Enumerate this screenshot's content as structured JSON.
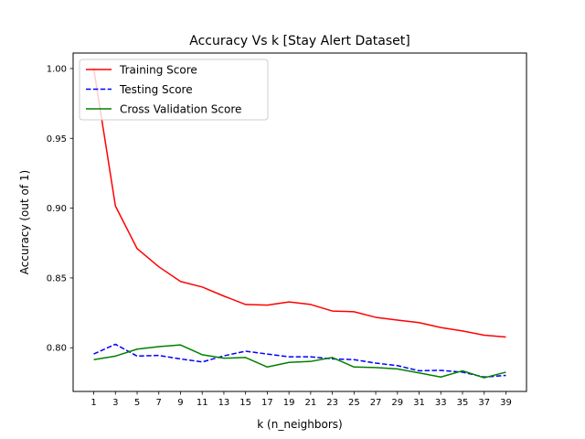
{
  "chart_data": {
    "type": "line",
    "title": "Accuracy Vs k [Stay Alert Dataset]",
    "xlabel": "k (n_neighbors)",
    "ylabel": "Accuracy (out of 1)",
    "x": [
      1,
      3,
      5,
      7,
      9,
      11,
      13,
      15,
      17,
      19,
      21,
      23,
      25,
      27,
      29,
      31,
      33,
      35,
      37,
      39
    ],
    "xticks": [
      "1",
      "3",
      "5",
      "7",
      "9",
      "11",
      "13",
      "15",
      "17",
      "19",
      "21",
      "23",
      "25",
      "27",
      "29",
      "31",
      "33",
      "35",
      "37",
      "39"
    ],
    "xlim": [
      -0.9,
      40.9
    ],
    "yticks": [
      "0.80",
      "0.85",
      "0.90",
      "0.95",
      "1.00"
    ],
    "ytick_values": [
      0.8,
      0.85,
      0.9,
      0.95,
      1.0
    ],
    "ylim": [
      0.7687,
      1.0111
    ],
    "grid": false,
    "legend_position": "top-left",
    "series": [
      {
        "name": "Training Score",
        "color": "#ff0000",
        "style": "solid",
        "values": [
          1.0,
          0.9015,
          0.871,
          0.858,
          0.8475,
          0.8435,
          0.837,
          0.831,
          0.8305,
          0.8328,
          0.831,
          0.8263,
          0.8258,
          0.8218,
          0.8198,
          0.818,
          0.8145,
          0.812,
          0.809,
          0.8077
        ]
      },
      {
        "name": "Testing Score",
        "color": "#0000ff",
        "style": "dashed",
        "values": [
          0.7955,
          0.8025,
          0.794,
          0.7945,
          0.792,
          0.7898,
          0.7942,
          0.7975,
          0.7955,
          0.7935,
          0.7935,
          0.792,
          0.7915,
          0.789,
          0.7872,
          0.7835,
          0.7838,
          0.7825,
          0.779,
          0.7802
        ]
      },
      {
        "name": "Cross Validation Score",
        "color": "#008000",
        "style": "solid",
        "values": [
          0.7915,
          0.794,
          0.799,
          0.8008,
          0.802,
          0.795,
          0.7925,
          0.793,
          0.7862,
          0.7895,
          0.7902,
          0.793,
          0.7862,
          0.7858,
          0.7848,
          0.782,
          0.779,
          0.7835,
          0.7785,
          0.7825
        ]
      }
    ]
  }
}
